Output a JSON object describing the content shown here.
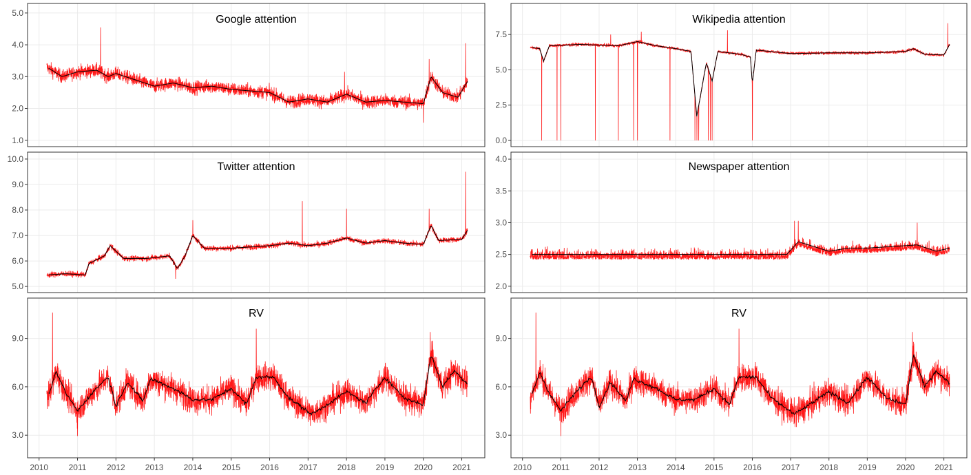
{
  "chart_data": [
    {
      "type": "line",
      "title": "Google attention",
      "ylim": [
        0.8,
        5.3
      ],
      "yticks": [
        "1.0",
        "2.0",
        "3.0",
        "4.0",
        "5.0"
      ],
      "ytick_values": [
        1,
        2,
        3,
        4,
        5
      ],
      "smooth": [
        [
          2010.2,
          3.3
        ],
        [
          2010.6,
          3.0
        ],
        [
          2011.0,
          3.15
        ],
        [
          2011.5,
          3.2
        ],
        [
          2011.8,
          3.0
        ],
        [
          2012.0,
          3.1
        ],
        [
          2012.5,
          2.9
        ],
        [
          2013.0,
          2.7
        ],
        [
          2013.5,
          2.8
        ],
        [
          2014.0,
          2.65
        ],
        [
          2014.5,
          2.7
        ],
        [
          2015.0,
          2.6
        ],
        [
          2015.5,
          2.55
        ],
        [
          2016.0,
          2.5
        ],
        [
          2016.5,
          2.2
        ],
        [
          2017.0,
          2.3
        ],
        [
          2017.5,
          2.2
        ],
        [
          2018.0,
          2.45
        ],
        [
          2018.5,
          2.2
        ],
        [
          2019.0,
          2.25
        ],
        [
          2019.5,
          2.2
        ],
        [
          2020.0,
          2.15
        ],
        [
          2020.2,
          3.0
        ],
        [
          2020.5,
          2.5
        ],
        [
          2020.9,
          2.35
        ],
        [
          2021.15,
          2.85
        ]
      ],
      "noise": 0.15,
      "spikes": [
        [
          2011.6,
          4.55
        ],
        [
          2021.1,
          4.05
        ],
        [
          2020.15,
          3.55
        ],
        [
          2020.0,
          1.55
        ],
        [
          2017.95,
          3.15
        ]
      ]
    },
    {
      "type": "line",
      "title": "Wikipedia attention",
      "ylim": [
        -0.44,
        9.7
      ],
      "yticks": [
        "0.0",
        "2.5",
        "5.0",
        "7.5"
      ],
      "ytick_values": [
        0,
        2.5,
        5,
        7.5
      ],
      "smooth": [
        [
          2010.2,
          6.6
        ],
        [
          2010.45,
          6.5
        ],
        [
          2010.55,
          5.6
        ],
        [
          2010.7,
          6.7
        ],
        [
          2011.5,
          6.8
        ],
        [
          2012.5,
          6.7
        ],
        [
          2013.0,
          7.0
        ],
        [
          2013.5,
          6.7
        ],
        [
          2014.0,
          6.5
        ],
        [
          2014.4,
          6.3
        ],
        [
          2014.55,
          1.7
        ],
        [
          2014.8,
          5.5
        ],
        [
          2014.95,
          4.2
        ],
        [
          2015.1,
          6.3
        ],
        [
          2015.7,
          6.1
        ],
        [
          2015.95,
          5.9
        ],
        [
          2016.0,
          4.0
        ],
        [
          2016.1,
          6.4
        ],
        [
          2017.0,
          6.15
        ],
        [
          2018.0,
          6.2
        ],
        [
          2019.0,
          6.2
        ],
        [
          2020.0,
          6.3
        ],
        [
          2020.2,
          6.5
        ],
        [
          2020.5,
          6.1
        ],
        [
          2021.0,
          6.05
        ],
        [
          2021.15,
          6.8
        ]
      ],
      "noise": 0.08,
      "spikes": [
        [
          2010.5,
          0
        ],
        [
          2010.9,
          0
        ],
        [
          2011.0,
          0
        ],
        [
          2011.9,
          0
        ],
        [
          2012.5,
          0
        ],
        [
          2012.9,
          0
        ],
        [
          2013.0,
          0
        ],
        [
          2013.85,
          0
        ],
        [
          2014.5,
          0
        ],
        [
          2014.55,
          0
        ],
        [
          2014.6,
          0
        ],
        [
          2014.85,
          0
        ],
        [
          2014.9,
          0
        ],
        [
          2014.95,
          0
        ],
        [
          2016.0,
          0
        ],
        [
          2021.1,
          8.3
        ],
        [
          2015.35,
          7.8
        ],
        [
          2013.1,
          7.7
        ],
        [
          2012.3,
          7.5
        ]
      ]
    },
    {
      "type": "line",
      "title": "Twitter attention",
      "ylim": [
        4.76,
        10.27
      ],
      "yticks": [
        "5.0",
        "6.0",
        "7.0",
        "8.0",
        "9.0",
        "10.0"
      ],
      "ytick_values": [
        5,
        6,
        7,
        8,
        9,
        10
      ],
      "smooth": [
        [
          2010.2,
          5.45
        ],
        [
          2010.7,
          5.5
        ],
        [
          2011.2,
          5.45
        ],
        [
          2011.3,
          5.9
        ],
        [
          2011.7,
          6.2
        ],
        [
          2011.85,
          6.6
        ],
        [
          2012.2,
          6.1
        ],
        [
          2012.8,
          6.1
        ],
        [
          2013.4,
          6.2
        ],
        [
          2013.6,
          5.7
        ],
        [
          2013.8,
          6.2
        ],
        [
          2014.0,
          7.0
        ],
        [
          2014.3,
          6.5
        ],
        [
          2015.0,
          6.5
        ],
        [
          2016.0,
          6.6
        ],
        [
          2016.5,
          6.7
        ],
        [
          2017.0,
          6.6
        ],
        [
          2017.5,
          6.7
        ],
        [
          2018.0,
          6.9
        ],
        [
          2018.5,
          6.7
        ],
        [
          2019.0,
          6.8
        ],
        [
          2019.5,
          6.7
        ],
        [
          2020.0,
          6.65
        ],
        [
          2020.2,
          7.4
        ],
        [
          2020.4,
          6.8
        ],
        [
          2021.0,
          6.85
        ],
        [
          2021.15,
          7.2
        ]
      ],
      "noise": 0.08,
      "spikes": [
        [
          2021.1,
          9.5
        ],
        [
          2016.85,
          8.35
        ],
        [
          2020.15,
          8.05
        ],
        [
          2013.55,
          5.3
        ],
        [
          2018.0,
          8.05
        ],
        [
          2014.0,
          7.6
        ]
      ]
    },
    {
      "type": "line",
      "title": "Newspaper attention",
      "ylim": [
        1.9,
        4.11
      ],
      "yticks": [
        "2.0",
        "2.5",
        "3.0",
        "3.5",
        "4.0"
      ],
      "ytick_values": [
        2,
        2.5,
        3,
        3.5,
        4
      ],
      "smooth": [
        [
          2010.2,
          2.5
        ],
        [
          2016.9,
          2.5
        ],
        [
          2017.2,
          2.7
        ],
        [
          2018.0,
          2.55
        ],
        [
          2018.5,
          2.6
        ],
        [
          2019.0,
          2.6
        ],
        [
          2020.3,
          2.65
        ],
        [
          2020.8,
          2.55
        ],
        [
          2021.15,
          2.6
        ]
      ],
      "noise": 0.1,
      "floor": 2.42,
      "spikes": [
        [
          2017.1,
          3.03
        ],
        [
          2017.2,
          3.03
        ],
        [
          2020.3,
          3.0
        ]
      ]
    },
    {
      "type": "line",
      "title": "RV",
      "ylim": [
        1.6,
        11.5
      ],
      "yticks": [
        "3.0",
        "6.0",
        "9.0"
      ],
      "ytick_values": [
        3,
        6,
        9
      ],
      "smooth": [
        [
          2010.2,
          5.2
        ],
        [
          2010.45,
          6.9
        ],
        [
          2010.7,
          5.6
        ],
        [
          2011.0,
          4.5
        ],
        [
          2011.3,
          5.4
        ],
        [
          2011.65,
          6.3
        ],
        [
          2011.8,
          6.6
        ],
        [
          2012.0,
          4.8
        ],
        [
          2012.3,
          6.3
        ],
        [
          2012.7,
          5.1
        ],
        [
          2012.9,
          6.5
        ],
        [
          2013.5,
          5.9
        ],
        [
          2014.0,
          5.2
        ],
        [
          2014.5,
          5.2
        ],
        [
          2015.0,
          5.9
        ],
        [
          2015.4,
          4.9
        ],
        [
          2015.65,
          6.6
        ],
        [
          2016.1,
          6.6
        ],
        [
          2016.5,
          5.3
        ],
        [
          2017.1,
          4.3
        ],
        [
          2017.5,
          4.9
        ],
        [
          2018.0,
          5.7
        ],
        [
          2018.5,
          5.0
        ],
        [
          2019.0,
          6.6
        ],
        [
          2019.5,
          5.3
        ],
        [
          2020.0,
          4.9
        ],
        [
          2020.2,
          8.0
        ],
        [
          2020.5,
          6.0
        ],
        [
          2020.8,
          7.0
        ],
        [
          2021.15,
          6.2
        ]
      ],
      "noise": 0.6,
      "spikes": [
        [
          2010.35,
          10.6
        ],
        [
          2015.65,
          9.6
        ],
        [
          2020.18,
          9.4
        ],
        [
          2011.0,
          2.95
        ]
      ]
    },
    {
      "type": "line",
      "title": "RV",
      "ylim": [
        1.6,
        11.5
      ],
      "yticks": [
        "3.0",
        "6.0",
        "9.0"
      ],
      "ytick_values": [
        3,
        6,
        9
      ],
      "smooth": [
        [
          2010.2,
          5.2
        ],
        [
          2010.45,
          6.9
        ],
        [
          2010.7,
          5.6
        ],
        [
          2011.0,
          4.5
        ],
        [
          2011.3,
          5.4
        ],
        [
          2011.65,
          6.3
        ],
        [
          2011.8,
          6.6
        ],
        [
          2012.0,
          4.8
        ],
        [
          2012.3,
          6.3
        ],
        [
          2012.7,
          5.1
        ],
        [
          2012.9,
          6.5
        ],
        [
          2013.5,
          5.9
        ],
        [
          2014.0,
          5.2
        ],
        [
          2014.5,
          5.2
        ],
        [
          2015.0,
          5.9
        ],
        [
          2015.4,
          4.9
        ],
        [
          2015.65,
          6.6
        ],
        [
          2016.1,
          6.6
        ],
        [
          2016.5,
          5.3
        ],
        [
          2017.1,
          4.3
        ],
        [
          2017.5,
          4.9
        ],
        [
          2018.0,
          5.7
        ],
        [
          2018.5,
          5.0
        ],
        [
          2019.0,
          6.6
        ],
        [
          2019.5,
          5.3
        ],
        [
          2020.0,
          4.9
        ],
        [
          2020.2,
          8.0
        ],
        [
          2020.5,
          6.0
        ],
        [
          2020.8,
          7.0
        ],
        [
          2021.15,
          6.2
        ]
      ],
      "noise": 0.6,
      "spikes": [
        [
          2010.35,
          10.6
        ],
        [
          2015.65,
          9.6
        ],
        [
          2020.18,
          9.4
        ],
        [
          2011.0,
          2.95
        ]
      ]
    }
  ],
  "xaxis": {
    "xlim": [
      2009.7,
      2021.6
    ],
    "ticks": [
      "2010",
      "2011",
      "2012",
      "2013",
      "2014",
      "2015",
      "2016",
      "2017",
      "2018",
      "2019",
      "2020",
      "2021"
    ],
    "tick_values": [
      2010,
      2011,
      2012,
      2013,
      2014,
      2015,
      2016,
      2017,
      2018,
      2019,
      2020,
      2021
    ]
  },
  "colors": {
    "raw": "#ff0000",
    "smooth": "#000000",
    "grid": "#ebebeb",
    "frame": "#333333"
  }
}
